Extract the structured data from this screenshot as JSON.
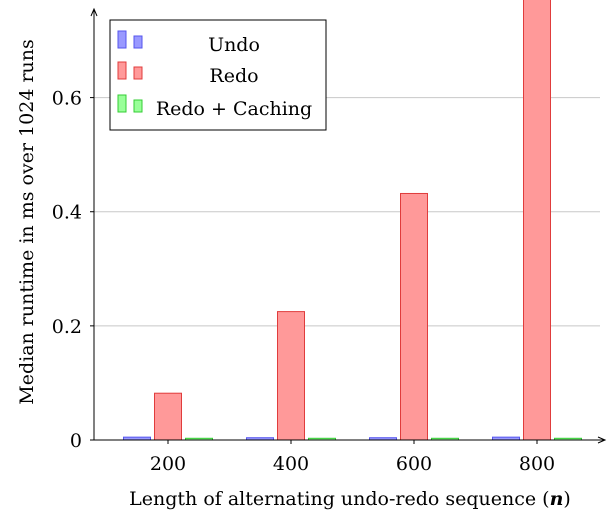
{
  "chart_data": {
    "type": "bar",
    "xlabel_parts": [
      "Length of alternating undo-redo sequence (",
      "n",
      ")"
    ],
    "ylabel": "Median runtime in ms over 1024 runs",
    "categories": [
      "200",
      "400",
      "600",
      "800"
    ],
    "ylim": [
      0,
      0.75
    ],
    "yticks": [
      0,
      0.2,
      0.4,
      0.6
    ],
    "ytick_labels": [
      "0",
      "0.2",
      "0.4",
      "0.6"
    ],
    "grid": "horizontal",
    "legend_position": "top-left",
    "series": [
      {
        "name": "Undo",
        "values": [
          0.005,
          0.004,
          0.004,
          0.005
        ],
        "fill": "#9999ff",
        "stroke": "#5555ee"
      },
      {
        "name": "Redo",
        "values": [
          0.082,
          0.225,
          0.432,
          0.775
        ],
        "fill": "#ff9999",
        "stroke": "#e03c3c"
      },
      {
        "name": "Redo + Caching",
        "values": [
          0.003,
          0.003,
          0.003,
          0.003
        ],
        "fill": "#99ff99",
        "stroke": "#33cc33"
      }
    ]
  }
}
